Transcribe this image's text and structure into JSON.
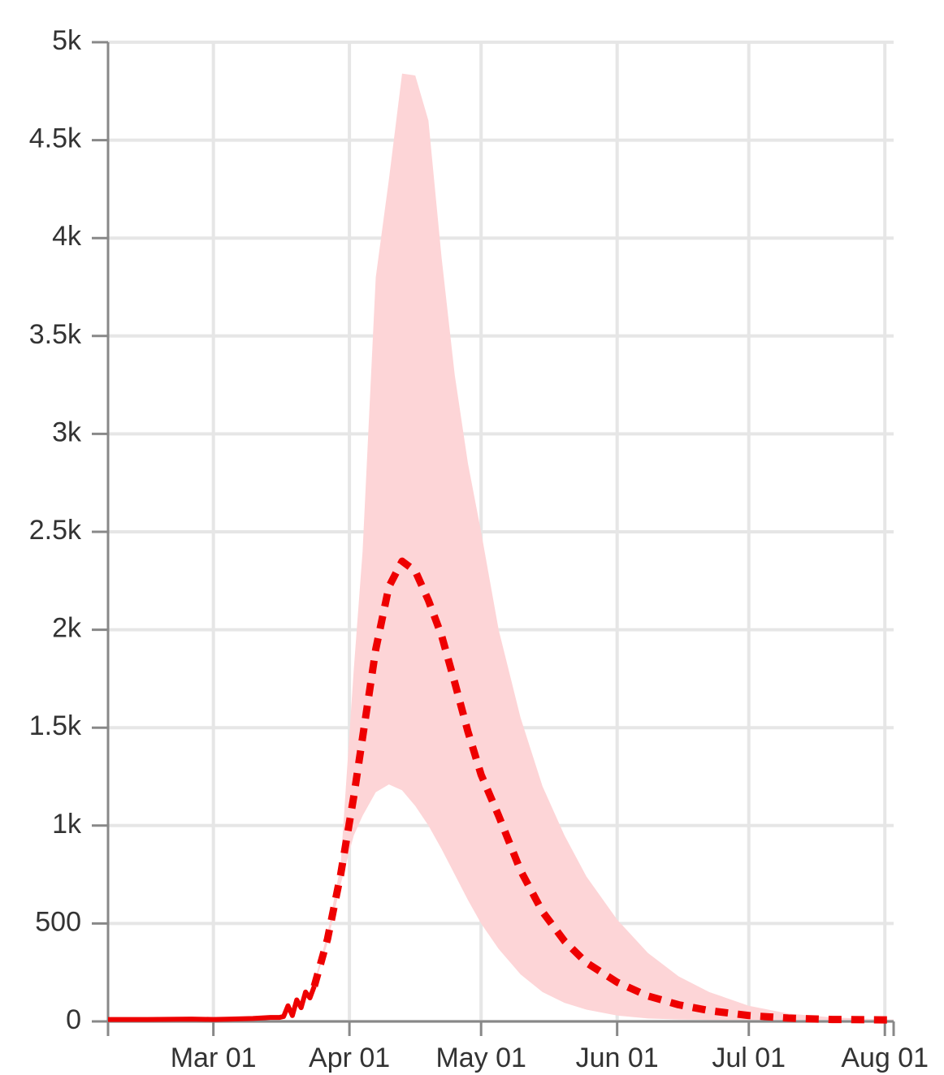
{
  "chart_data": {
    "type": "line",
    "grid": true,
    "xlim": [
      "Feb 06",
      "Aug 03"
    ],
    "xticks": [
      "Mar 01",
      "Apr 01",
      "May 01",
      "Jun 01",
      "Jul 01",
      "Aug 01"
    ],
    "ylim": [
      0,
      5000
    ],
    "yticks": [
      0,
      500,
      {
        "value": 1000,
        "label": "1k"
      },
      {
        "value": 1500,
        "label": "1.5k"
      },
      {
        "value": 2000,
        "label": "2k"
      },
      {
        "value": 2500,
        "label": "2.5k"
      },
      {
        "value": 3000,
        "label": "3k"
      },
      {
        "value": 3500,
        "label": "3.5k"
      },
      {
        "value": 4000,
        "label": "4k"
      },
      {
        "value": 4500,
        "label": "4.5k"
      },
      {
        "value": 5000,
        "label": "5k"
      }
    ],
    "series": [
      {
        "color": "#ee0000",
        "style": "solid",
        "x": [
          "Feb 06",
          "Feb 15",
          "Feb 25",
          "Mar 01",
          "Mar 05",
          "Mar 10",
          "Mar 14",
          "Mar 16",
          "Mar 17",
          "Mar 18",
          "Mar 19",
          "Mar 20",
          "Mar 21",
          "Mar 22",
          "Mar 23",
          "Mar 24"
        ],
        "values": [
          10,
          10,
          12,
          10,
          12,
          15,
          20,
          20,
          25,
          80,
          30,
          110,
          70,
          150,
          120,
          180
        ]
      },
      {
        "color": "#ee0000",
        "style": "dashed",
        "band_color": "#fdd5d7",
        "x": [
          "Mar 24",
          "Mar 27",
          "Mar 30",
          "Apr 02",
          "Apr 04",
          "Apr 07",
          "Apr 10",
          "Apr 13",
          "Apr 16",
          "Apr 19",
          "Apr 22",
          "Apr 25",
          "Apr 28",
          "May 01",
          "May 05",
          "May 10",
          "May 15",
          "May 20",
          "May 25",
          "Jun 01",
          "Jun 08",
          "Jun 15",
          "Jun 22",
          "Jul 01",
          "Jul 10",
          "Jul 20",
          "Aug 01",
          "Aug 03"
        ],
        "values": [
          180,
          420,
          750,
          1150,
          1450,
          1900,
          2220,
          2350,
          2300,
          2150,
          1970,
          1730,
          1480,
          1260,
          1050,
          770,
          560,
          410,
          300,
          200,
          130,
          85,
          55,
          30,
          17,
          10,
          8,
          8
        ],
        "upper": [
          200,
          450,
          800,
          1800,
          2400,
          3800,
          4300,
          4840,
          4830,
          4600,
          3900,
          3300,
          2850,
          2500,
          2000,
          1550,
          1200,
          950,
          740,
          520,
          350,
          230,
          150,
          80,
          40,
          20,
          10,
          10
        ],
        "lower": [
          180,
          400,
          700,
          950,
          1050,
          1170,
          1210,
          1180,
          1100,
          1000,
          880,
          750,
          620,
          500,
          370,
          240,
          150,
          95,
          60,
          30,
          15,
          10,
          8,
          8,
          8,
          8,
          8,
          8
        ]
      }
    ]
  }
}
